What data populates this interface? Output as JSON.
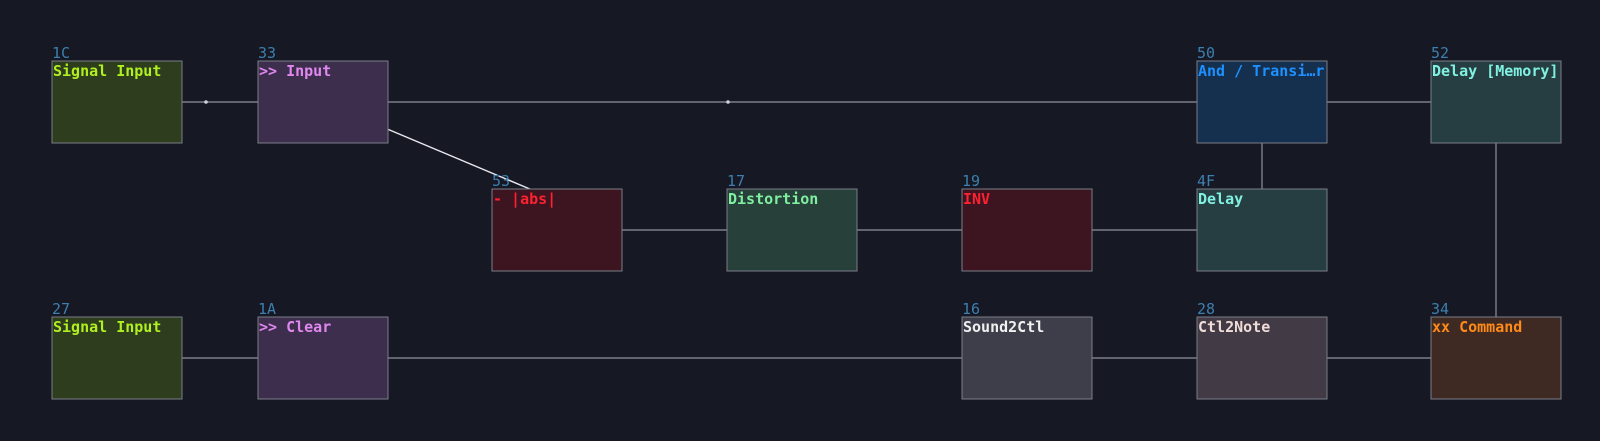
{
  "nodes": [
    {
      "id": "1C",
      "title": "Signal Input",
      "color": "#b0f020",
      "fill": "#2e3d1e"
    },
    {
      "id": "33",
      "title": ">> Input",
      "color": "#e088ee",
      "fill": "#3d2e4e",
      "id_color": "#e8e8ee"
    },
    {
      "id": "53",
      "title": "- |abs|",
      "color": "#ff2030",
      "fill": "#3c1520"
    },
    {
      "id": "17",
      "title": "Distortion",
      "color": "#7ef0a0",
      "fill": "#28403a"
    },
    {
      "id": "19",
      "title": "INV",
      "color": "#ff2030",
      "fill": "#3c1520"
    },
    {
      "id": "50",
      "title": "And / Transi…r",
      "color": "#1e90ff",
      "fill": "#14304e"
    },
    {
      "id": "4F",
      "title": "Delay",
      "color": "#80f0e0",
      "fill": "#263e42"
    },
    {
      "id": "52",
      "title": "Delay [Memory]",
      "color": "#80f0e0",
      "fill": "#263e42"
    },
    {
      "id": "27",
      "title": "Signal Input",
      "color": "#b0f020",
      "fill": "#2e3d1e"
    },
    {
      "id": "1A",
      "title": ">> Clear",
      "color": "#e088ee",
      "fill": "#3d2e4e"
    },
    {
      "id": "16",
      "title": "Sound2Ctl",
      "color": "#f0f0f0",
      "fill": "#3e3e4a"
    },
    {
      "id": "28",
      "title": "Ctl2Note",
      "color": "#f0dcd8",
      "fill": "#423a44"
    },
    {
      "id": "34",
      "title": "xx Command",
      "color": "#ff8a18",
      "fill": "#3e2a22"
    }
  ],
  "id_color": "#3d7fae",
  "background": "#161824"
}
